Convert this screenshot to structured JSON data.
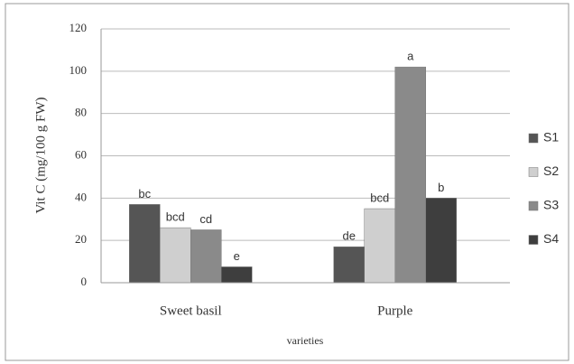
{
  "chart_data": {
    "type": "bar",
    "y_label": "Vit C (mg/100 g FW)",
    "x_label": "varieties",
    "categories": [
      "Sweet basil",
      "Purple"
    ],
    "series": [
      {
        "name": "S1",
        "color": "#555555",
        "values": [
          37,
          17
        ],
        "labels": [
          "bc",
          "de"
        ]
      },
      {
        "name": "S2",
        "color": "#cfcfcf",
        "values": [
          26,
          35
        ],
        "labels": [
          "bcd",
          "bcd"
        ]
      },
      {
        "name": "S3",
        "color": "#8a8a8a",
        "values": [
          25,
          102
        ],
        "labels": [
          "cd",
          "a"
        ]
      },
      {
        "name": "S4",
        "color": "#3e3e3e",
        "values": [
          7.5,
          40
        ],
        "labels": [
          "e",
          "b"
        ]
      }
    ],
    "ylim": [
      0,
      120
    ],
    "yticks": [
      0,
      20,
      40,
      60,
      80,
      100,
      120
    ],
    "grid": true,
    "legend": "right"
  }
}
